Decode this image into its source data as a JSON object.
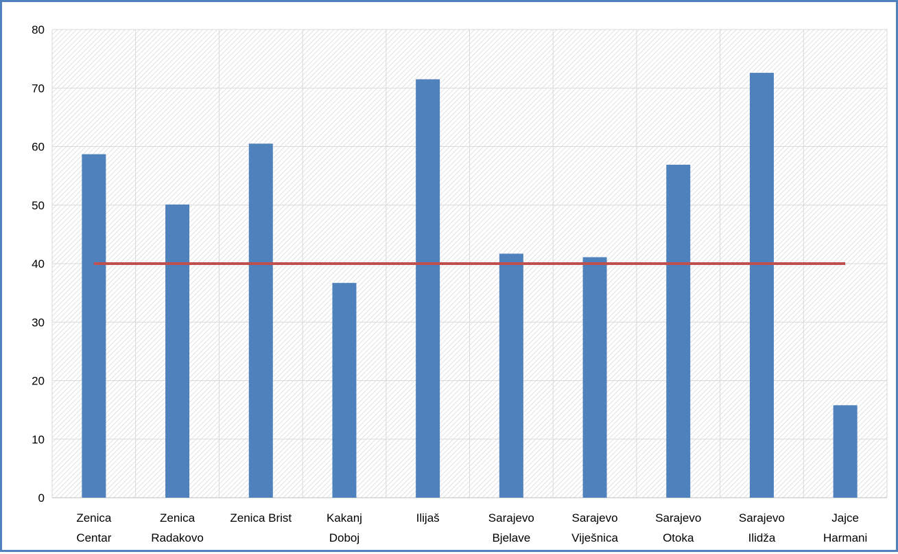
{
  "chart_data": {
    "type": "bar",
    "title": "",
    "xlabel": "",
    "ylabel": "",
    "ylim": [
      0,
      80
    ],
    "yticks": [
      0,
      10,
      20,
      30,
      40,
      50,
      60,
      70,
      80
    ],
    "grid": true,
    "legend": "none",
    "categories": [
      [
        "Zenica",
        "Centar"
      ],
      [
        "Zenica",
        "Radakovo"
      ],
      [
        "Zenica Brist"
      ],
      [
        "Kakanj",
        "Doboj"
      ],
      [
        "Ilijaš"
      ],
      [
        "Sarajevo",
        "Bjelave"
      ],
      [
        "Sarajevo",
        "Viješnica"
      ],
      [
        "Sarajevo",
        "Otoka"
      ],
      [
        "Sarajevo",
        "Ilidža"
      ],
      [
        "Jajce",
        "Harmani"
      ]
    ],
    "series": [
      {
        "type": "bar",
        "values": [
          58.7,
          50.1,
          60.5,
          36.7,
          71.5,
          41.7,
          41.1,
          56.9,
          72.6,
          15.8
        ],
        "color": "#4F81BD"
      },
      {
        "type": "line",
        "values": [
          40,
          40,
          40,
          40,
          40,
          40,
          40,
          40,
          40,
          40
        ],
        "color": "#C0504D"
      }
    ]
  }
}
